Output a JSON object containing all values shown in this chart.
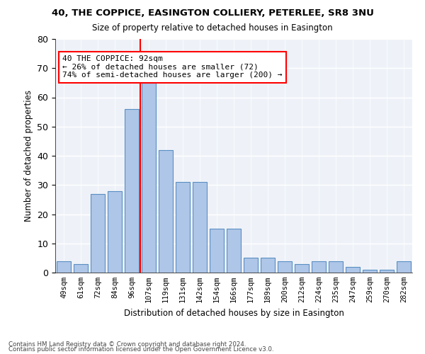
{
  "title": "40, THE COPPICE, EASINGTON COLLIERY, PETERLEE, SR8 3NU",
  "subtitle": "Size of property relative to detached houses in Easington",
  "xlabel": "Distribution of detached houses by size in Easington",
  "ylabel": "Number of detached properties",
  "categories": [
    "49sqm",
    "61sqm",
    "72sqm",
    "84sqm",
    "96sqm",
    "107sqm",
    "119sqm",
    "131sqm",
    "142sqm",
    "154sqm",
    "166sqm",
    "177sqm",
    "189sqm",
    "200sqm",
    "212sqm",
    "224sqm",
    "235sqm",
    "247sqm",
    "259sqm",
    "270sqm",
    "282sqm"
  ],
  "bar_values": [
    4,
    3,
    27,
    28,
    56,
    65,
    42,
    31,
    31,
    15,
    15,
    5,
    5,
    4,
    3,
    4,
    4,
    2,
    1,
    1,
    4
  ],
  "ylim": [
    0,
    80
  ],
  "yticks": [
    0,
    10,
    20,
    30,
    40,
    50,
    60,
    70,
    80
  ],
  "bar_color": "#aec6e8",
  "bar_edge_color": "#5a8fc2",
  "bg_color": "#eef2f8",
  "grid_color": "#ffffff",
  "annotation_line1": "40 THE COPPICE: 92sqm",
  "annotation_line2": "← 26% of detached houses are smaller (72)",
  "annotation_line3": "74% of semi-detached houses are larger (200) →",
  "vline_color": "red",
  "footer1": "Contains HM Land Registry data © Crown copyright and database right 2024.",
  "footer2": "Contains public sector information licensed under the Open Government Licence v3.0."
}
